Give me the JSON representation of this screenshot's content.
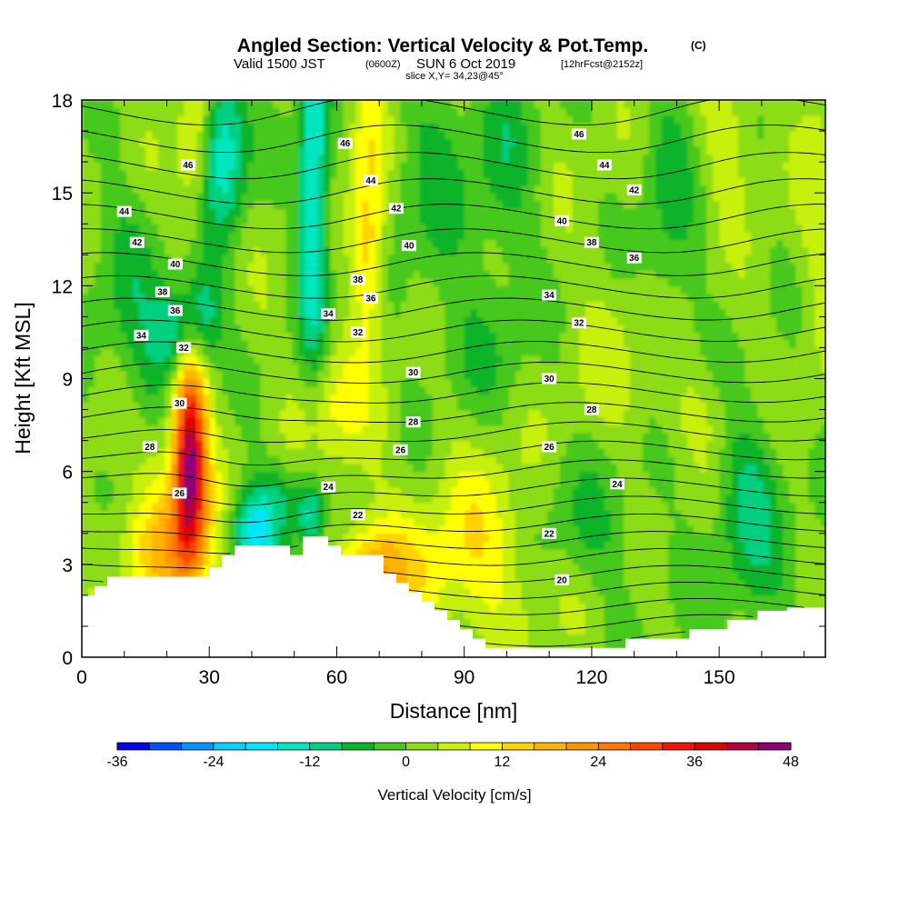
{
  "chart_data": {
    "type": "heatmap",
    "title": {
      "main": "Angled Section: Vertical Velocity & Pot.Temp.",
      "unit_tag": "(C)",
      "valid_prefix": "Valid 1500 JST",
      "valid_utc": "(0600Z)",
      "valid_date": "SUN 6 Oct 2019",
      "forecast": "[12hrFcst@2152z]",
      "slice": "slice X,Y= 34,23@45°"
    },
    "xlabel": "Distance [nm]",
    "ylabel": "Height [Kft MSL]",
    "xlim": [
      0,
      175
    ],
    "ylim": [
      0,
      18
    ],
    "xticks": [
      0,
      30,
      60,
      90,
      120,
      150
    ],
    "yticks": [
      0,
      3,
      6,
      9,
      12,
      15,
      18
    ],
    "grid": false,
    "colorbar": {
      "label": "Vertical Velocity [cm/s]",
      "min": -36,
      "max": 48,
      "step": 4,
      "ticks": [
        -36,
        -24,
        -12,
        0,
        12,
        24,
        36,
        48
      ],
      "colors": [
        "#0000f0",
        "#0050ff",
        "#0096ff",
        "#00d2ff",
        "#00e6ff",
        "#00e6c0",
        "#00d080",
        "#0ab42a",
        "#46c81e",
        "#8cdc14",
        "#c8f00a",
        "#ffff00",
        "#ffd200",
        "#ffb400",
        "#ff9600",
        "#ff7800",
        "#ff4600",
        "#f01400",
        "#dc0000",
        "#b4003c",
        "#8c0078"
      ]
    },
    "terrain": [
      [
        0,
        2.0
      ],
      [
        3,
        2.3
      ],
      [
        6,
        2.6
      ],
      [
        30,
        2.9
      ],
      [
        33,
        3.3
      ],
      [
        36,
        3.6
      ],
      [
        49,
        3.3
      ],
      [
        52,
        3.9
      ],
      [
        58,
        3.6
      ],
      [
        61,
        3.3
      ],
      [
        71,
        2.7
      ],
      [
        74,
        2.4
      ],
      [
        77,
        2.1
      ],
      [
        80,
        1.8
      ],
      [
        83,
        1.5
      ],
      [
        86,
        1.2
      ],
      [
        89,
        0.9
      ],
      [
        92,
        0.6
      ],
      [
        95,
        0.3
      ],
      [
        128,
        0.6
      ],
      [
        143,
        0.9
      ],
      [
        152,
        1.2
      ],
      [
        159,
        1.5
      ],
      [
        166,
        1.6
      ],
      [
        175,
        1.6
      ]
    ],
    "velocity_features": [
      {
        "x": 25.5,
        "z": 6.5,
        "sx": 2.6,
        "sz": 2.2,
        "w": 40
      },
      {
        "x": 24.0,
        "z": 4.5,
        "sx": 6.0,
        "sz": 2.0,
        "w": 12
      },
      {
        "x": 17.0,
        "z": 3.4,
        "sx": 8.0,
        "sz": 1.2,
        "w": 8
      },
      {
        "x": 27.0,
        "z": 16.5,
        "sx": 3.0,
        "sz": 2.0,
        "w": 10
      },
      {
        "x": 28.0,
        "z": 11.0,
        "sx": 3.5,
        "sz": 1.2,
        "w": -14
      },
      {
        "x": 21.0,
        "z": 10.5,
        "sx": 3.0,
        "sz": 1.0,
        "w": -12
      },
      {
        "x": 15.0,
        "z": 9.2,
        "sx": 4.0,
        "sz": 1.5,
        "w": -6
      },
      {
        "x": 33.0,
        "z": 16.5,
        "sx": 4.0,
        "sz": 2.0,
        "w": -18
      },
      {
        "x": 40.0,
        "z": 4.0,
        "sx": 4.0,
        "sz": 0.9,
        "w": -20
      },
      {
        "x": 47.0,
        "z": 5.2,
        "sx": 6.0,
        "sz": 0.8,
        "w": -8
      },
      {
        "x": 54.0,
        "z": 4.5,
        "sx": 2.0,
        "sz": 0.7,
        "w": -12
      },
      {
        "x": 54.5,
        "z": 15.0,
        "sx": 2.5,
        "sz": 4.0,
        "w": -20
      },
      {
        "x": 67.5,
        "z": 16.0,
        "sx": 3.0,
        "sz": 3.5,
        "w": 10
      },
      {
        "x": 67.5,
        "z": 12.8,
        "sx": 2.5,
        "sz": 1.5,
        "w": 8
      },
      {
        "x": 83.0,
        "z": 15.5,
        "sx": 8.0,
        "sz": 3.0,
        "w": -6
      },
      {
        "x": 68.0,
        "z": 2.8,
        "sx": 5.0,
        "sz": 1.0,
        "w": 14
      },
      {
        "x": 78.0,
        "z": 2.6,
        "sx": 9.0,
        "sz": 1.5,
        "w": 8
      },
      {
        "x": 95.0,
        "z": 4.0,
        "sx": 8.0,
        "sz": 1.8,
        "w": 8
      },
      {
        "x": 58.0,
        "z": 8.5,
        "sx": 5.0,
        "sz": 1.2,
        "w": 6
      },
      {
        "x": 63.0,
        "z": 7.0,
        "sx": 6.0,
        "sz": 1.5,
        "w": 4
      },
      {
        "x": 94.0,
        "z": 10.0,
        "sx": 8.0,
        "sz": 1.5,
        "w": -4
      },
      {
        "x": 118.0,
        "z": 3.5,
        "sx": 10.0,
        "sz": 2.0,
        "w": -6
      },
      {
        "x": 110.0,
        "z": 2.0,
        "sx": 12.0,
        "sz": 1.2,
        "w": 4
      },
      {
        "x": 138.0,
        "z": 14.5,
        "sx": 5.0,
        "sz": 4.0,
        "w": -6
      },
      {
        "x": 157.0,
        "z": 5.5,
        "sx": 5.0,
        "sz": 1.8,
        "w": -10
      },
      {
        "x": 160.0,
        "z": 2.5,
        "sx": 12.0,
        "sz": 1.5,
        "w": -4
      },
      {
        "x": 152.0,
        "z": 17.0,
        "sx": 4.0,
        "sz": 1.5,
        "w": 6
      },
      {
        "x": 173.0,
        "z": 15.0,
        "sx": 3.0,
        "sz": 4.0,
        "w": 4
      },
      {
        "x": 142.0,
        "z": 8.0,
        "sx": 8.0,
        "sz": 1.0,
        "w": 4
      },
      {
        "x": 10.0,
        "z": 12.5,
        "sx": 6.0,
        "sz": 2.0,
        "w": -6
      },
      {
        "x": 100.0,
        "z": 16.0,
        "sx": 5.0,
        "sz": 3.0,
        "w": -6
      },
      {
        "x": 125.0,
        "z": 10.0,
        "sx": 8.0,
        "sz": 2.0,
        "w": 3
      }
    ],
    "theta_contour_interval": 1,
    "contour_labels": [
      {
        "text": "46",
        "x": 25,
        "z": 15.9
      },
      {
        "text": "44",
        "x": 10,
        "z": 14.4
      },
      {
        "text": "42",
        "x": 13,
        "z": 13.4
      },
      {
        "text": "40",
        "x": 22,
        "z": 12.7
      },
      {
        "text": "38",
        "x": 19,
        "z": 11.8
      },
      {
        "text": "36",
        "x": 22,
        "z": 11.2
      },
      {
        "text": "34",
        "x": 14,
        "z": 10.4
      },
      {
        "text": "32",
        "x": 24,
        "z": 10.0
      },
      {
        "text": "30",
        "x": 23,
        "z": 8.2
      },
      {
        "text": "28",
        "x": 16,
        "z": 6.8
      },
      {
        "text": "26",
        "x": 23,
        "z": 5.3
      },
      {
        "text": "46",
        "x": 62,
        "z": 16.6
      },
      {
        "text": "44",
        "x": 68,
        "z": 15.4
      },
      {
        "text": "42",
        "x": 74,
        "z": 14.5
      },
      {
        "text": "40",
        "x": 77,
        "z": 13.3
      },
      {
        "text": "38",
        "x": 65,
        "z": 12.2
      },
      {
        "text": "36",
        "x": 68,
        "z": 11.6
      },
      {
        "text": "34",
        "x": 58,
        "z": 11.1
      },
      {
        "text": "32",
        "x": 65,
        "z": 10.5
      },
      {
        "text": "30",
        "x": 78,
        "z": 9.2
      },
      {
        "text": "28",
        "x": 78,
        "z": 7.6
      },
      {
        "text": "26",
        "x": 75,
        "z": 6.7
      },
      {
        "text": "24",
        "x": 58,
        "z": 5.5
      },
      {
        "text": "22",
        "x": 65,
        "z": 4.6
      },
      {
        "text": "46",
        "x": 117,
        "z": 16.9
      },
      {
        "text": "44",
        "x": 123,
        "z": 15.9
      },
      {
        "text": "42",
        "x": 130,
        "z": 15.1
      },
      {
        "text": "40",
        "x": 113,
        "z": 14.1
      },
      {
        "text": "38",
        "x": 120,
        "z": 13.4
      },
      {
        "text": "36",
        "x": 130,
        "z": 12.9
      },
      {
        "text": "34",
        "x": 110,
        "z": 11.7
      },
      {
        "text": "32",
        "x": 117,
        "z": 10.8
      },
      {
        "text": "30",
        "x": 110,
        "z": 9.0
      },
      {
        "text": "28",
        "x": 120,
        "z": 8.0
      },
      {
        "text": "26",
        "x": 110,
        "z": 6.8
      },
      {
        "text": "24",
        "x": 126,
        "z": 5.6
      },
      {
        "text": "22",
        "x": 110,
        "z": 4.0
      },
      {
        "text": "20",
        "x": 113,
        "z": 2.5
      }
    ]
  }
}
